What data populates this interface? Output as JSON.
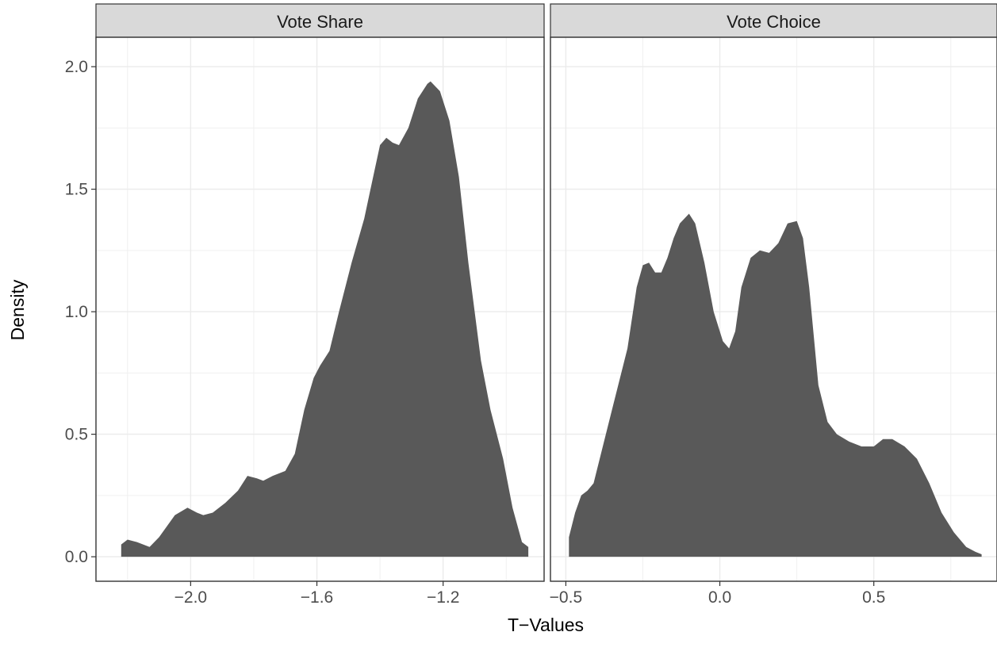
{
  "chart_data": {
    "type": "area",
    "xlabel": "T−Values",
    "ylabel": "Density",
    "ylim": [
      -0.1,
      2.12
    ],
    "yticks": [
      0.0,
      0.5,
      1.0,
      1.5,
      2.0
    ],
    "ytick_labels": [
      "0.0",
      "0.5",
      "1.0",
      "1.5",
      "2.0"
    ],
    "grid": true,
    "fill_color": "#595959",
    "panels": [
      {
        "title": "Vote Share",
        "xlim": [
          -2.3,
          -0.88
        ],
        "xticks": [
          -2.0,
          -1.6,
          -1.2
        ],
        "xtick_labels": [
          "−2.0",
          "−1.6",
          "−1.2"
        ],
        "x": [
          -2.22,
          -2.2,
          -2.17,
          -2.13,
          -2.1,
          -2.05,
          -2.01,
          -1.98,
          -1.96,
          -1.93,
          -1.89,
          -1.85,
          -1.82,
          -1.79,
          -1.77,
          -1.74,
          -1.7,
          -1.67,
          -1.64,
          -1.61,
          -1.59,
          -1.56,
          -1.53,
          -1.49,
          -1.45,
          -1.42,
          -1.4,
          -1.38,
          -1.36,
          -1.34,
          -1.31,
          -1.28,
          -1.25,
          -1.24,
          -1.21,
          -1.18,
          -1.15,
          -1.12,
          -1.08,
          -1.05,
          -1.01,
          -0.98,
          -0.95,
          -0.93
        ],
        "y": [
          0.05,
          0.07,
          0.06,
          0.04,
          0.08,
          0.17,
          0.2,
          0.18,
          0.17,
          0.18,
          0.22,
          0.27,
          0.33,
          0.32,
          0.31,
          0.33,
          0.35,
          0.42,
          0.6,
          0.73,
          0.78,
          0.84,
          1.0,
          1.2,
          1.38,
          1.56,
          1.68,
          1.71,
          1.69,
          1.68,
          1.75,
          1.87,
          1.93,
          1.94,
          1.9,
          1.78,
          1.55,
          1.2,
          0.8,
          0.6,
          0.4,
          0.2,
          0.06,
          0.04
        ]
      },
      {
        "title": "Vote Choice",
        "xlim": [
          -0.55,
          0.9
        ],
        "xticks": [
          -0.5,
          0.0,
          0.5
        ],
        "xtick_labels": [
          "−0.5",
          "0.0",
          "0.5"
        ],
        "x": [
          -0.49,
          -0.47,
          -0.45,
          -0.43,
          -0.41,
          -0.38,
          -0.34,
          -0.3,
          -0.27,
          -0.25,
          -0.23,
          -0.21,
          -0.19,
          -0.17,
          -0.15,
          -0.13,
          -0.1,
          -0.08,
          -0.05,
          -0.02,
          0.01,
          0.03,
          0.05,
          0.07,
          0.1,
          0.13,
          0.16,
          0.19,
          0.22,
          0.25,
          0.27,
          0.29,
          0.32,
          0.35,
          0.38,
          0.42,
          0.46,
          0.5,
          0.53,
          0.56,
          0.6,
          0.64,
          0.68,
          0.72,
          0.76,
          0.8,
          0.83,
          0.85
        ],
        "y": [
          0.08,
          0.18,
          0.25,
          0.27,
          0.3,
          0.45,
          0.65,
          0.85,
          1.1,
          1.19,
          1.2,
          1.16,
          1.16,
          1.22,
          1.3,
          1.36,
          1.4,
          1.36,
          1.2,
          1.0,
          0.88,
          0.85,
          0.92,
          1.1,
          1.22,
          1.25,
          1.24,
          1.28,
          1.36,
          1.37,
          1.3,
          1.1,
          0.7,
          0.55,
          0.5,
          0.47,
          0.45,
          0.45,
          0.48,
          0.48,
          0.45,
          0.4,
          0.3,
          0.18,
          0.1,
          0.04,
          0.02,
          0.01
        ]
      }
    ]
  }
}
